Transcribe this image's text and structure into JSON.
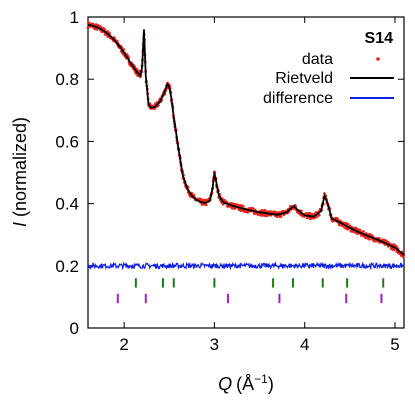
{
  "chart_data": {
    "type": "line",
    "title": "",
    "sample_label": "S14",
    "xlabel_symbol": "Q",
    "xlabel_unit_base": "(Å",
    "xlabel_unit_exp": "−1",
    "xlabel_unit_close": ")",
    "ylabel_symbol": "I",
    "ylabel_rest": " (normalized)",
    "xlim": [
      1.6,
      5.1
    ],
    "ylim": [
      0,
      1.0
    ],
    "x_ticks": [
      2,
      3,
      4,
      5
    ],
    "x_tick_labels": [
      "2",
      "3",
      "4",
      "5"
    ],
    "y_ticks": [
      0,
      0.2,
      0.4,
      0.6,
      0.8,
      1.0
    ],
    "y_tick_labels": [
      "0",
      "0.2",
      "0.4",
      "0.6",
      "0.8",
      "1"
    ],
    "grid": false,
    "legend_position": "top-right",
    "colors": {
      "data": "#e8261c",
      "rietveld": "#000000",
      "difference": "#1020e0",
      "ticks_phase1": "#1a7a1a",
      "ticks_phase2": "#a020c0"
    },
    "series": [
      {
        "name": "data",
        "style": "points",
        "points": [
          [
            1.6,
            0.975
          ],
          [
            1.65,
            0.972
          ],
          [
            1.7,
            0.967
          ],
          [
            1.75,
            0.96
          ],
          [
            1.8,
            0.95
          ],
          [
            1.85,
            0.938
          ],
          [
            1.9,
            0.923
          ],
          [
            1.95,
            0.905
          ],
          [
            2.0,
            0.885
          ],
          [
            2.05,
            0.862
          ],
          [
            2.1,
            0.84
          ],
          [
            2.15,
            0.82
          ],
          [
            2.18,
            0.812
          ],
          [
            2.2,
            0.84
          ],
          [
            2.22,
            0.96
          ],
          [
            2.24,
            0.81
          ],
          [
            2.27,
            0.72
          ],
          [
            2.3,
            0.708
          ],
          [
            2.35,
            0.712
          ],
          [
            2.4,
            0.73
          ],
          [
            2.45,
            0.76
          ],
          [
            2.48,
            0.785
          ],
          [
            2.5,
            0.775
          ],
          [
            2.52,
            0.745
          ],
          [
            2.55,
            0.68
          ],
          [
            2.6,
            0.58
          ],
          [
            2.65,
            0.49
          ],
          [
            2.7,
            0.448
          ],
          [
            2.75,
            0.425
          ],
          [
            2.8,
            0.412
          ],
          [
            2.85,
            0.405
          ],
          [
            2.9,
            0.402
          ],
          [
            2.95,
            0.41
          ],
          [
            2.98,
            0.45
          ],
          [
            3.0,
            0.5
          ],
          [
            3.02,
            0.47
          ],
          [
            3.05,
            0.425
          ],
          [
            3.1,
            0.404
          ],
          [
            3.2,
            0.393
          ],
          [
            3.3,
            0.385
          ],
          [
            3.4,
            0.378
          ],
          [
            3.5,
            0.372
          ],
          [
            3.6,
            0.368
          ],
          [
            3.7,
            0.364
          ],
          [
            3.8,
            0.372
          ],
          [
            3.85,
            0.385
          ],
          [
            3.88,
            0.392
          ],
          [
            3.92,
            0.38
          ],
          [
            4.0,
            0.362
          ],
          [
            4.1,
            0.358
          ],
          [
            4.18,
            0.375
          ],
          [
            4.22,
            0.425
          ],
          [
            4.25,
            0.405
          ],
          [
            4.3,
            0.352
          ],
          [
            4.4,
            0.338
          ],
          [
            4.5,
            0.322
          ],
          [
            4.6,
            0.308
          ],
          [
            4.7,
            0.296
          ],
          [
            4.8,
            0.285
          ],
          [
            4.9,
            0.272
          ],
          [
            5.0,
            0.258
          ],
          [
            5.1,
            0.235
          ]
        ]
      },
      {
        "name": "Rietveld",
        "style": "line",
        "points": [
          [
            1.6,
            0.975
          ],
          [
            1.65,
            0.972
          ],
          [
            1.7,
            0.967
          ],
          [
            1.75,
            0.96
          ],
          [
            1.8,
            0.95
          ],
          [
            1.85,
            0.938
          ],
          [
            1.9,
            0.923
          ],
          [
            1.95,
            0.905
          ],
          [
            2.0,
            0.885
          ],
          [
            2.05,
            0.862
          ],
          [
            2.1,
            0.84
          ],
          [
            2.15,
            0.82
          ],
          [
            2.18,
            0.812
          ],
          [
            2.2,
            0.84
          ],
          [
            2.22,
            0.96
          ],
          [
            2.24,
            0.81
          ],
          [
            2.27,
            0.72
          ],
          [
            2.3,
            0.708
          ],
          [
            2.35,
            0.712
          ],
          [
            2.4,
            0.73
          ],
          [
            2.45,
            0.76
          ],
          [
            2.48,
            0.785
          ],
          [
            2.5,
            0.775
          ],
          [
            2.52,
            0.745
          ],
          [
            2.55,
            0.68
          ],
          [
            2.6,
            0.58
          ],
          [
            2.65,
            0.49
          ],
          [
            2.7,
            0.448
          ],
          [
            2.75,
            0.425
          ],
          [
            2.8,
            0.412
          ],
          [
            2.85,
            0.405
          ],
          [
            2.9,
            0.402
          ],
          [
            2.95,
            0.41
          ],
          [
            2.98,
            0.45
          ],
          [
            3.0,
            0.5
          ],
          [
            3.02,
            0.47
          ],
          [
            3.05,
            0.425
          ],
          [
            3.1,
            0.404
          ],
          [
            3.2,
            0.393
          ],
          [
            3.3,
            0.385
          ],
          [
            3.4,
            0.378
          ],
          [
            3.5,
            0.372
          ],
          [
            3.6,
            0.368
          ],
          [
            3.7,
            0.364
          ],
          [
            3.8,
            0.372
          ],
          [
            3.85,
            0.385
          ],
          [
            3.88,
            0.392
          ],
          [
            3.92,
            0.38
          ],
          [
            4.0,
            0.362
          ],
          [
            4.1,
            0.358
          ],
          [
            4.18,
            0.375
          ],
          [
            4.22,
            0.425
          ],
          [
            4.25,
            0.405
          ],
          [
            4.3,
            0.352
          ],
          [
            4.4,
            0.338
          ],
          [
            4.5,
            0.322
          ],
          [
            4.6,
            0.308
          ],
          [
            4.7,
            0.296
          ],
          [
            4.8,
            0.285
          ],
          [
            4.9,
            0.272
          ],
          [
            5.0,
            0.258
          ],
          [
            5.1,
            0.235
          ]
        ]
      },
      {
        "name": "difference",
        "style": "line",
        "baseline": 0.2,
        "amplitude": 0.008
      }
    ],
    "tick_marks_phase1": {
      "y_range": [
        0.13,
        0.16
      ],
      "x": [
        2.13,
        2.43,
        2.55,
        3.0,
        3.65,
        3.87,
        4.2,
        4.47,
        4.87
      ]
    },
    "tick_marks_phase2": {
      "y_range": [
        0.08,
        0.11
      ],
      "x": [
        1.93,
        2.24,
        3.15,
        3.72,
        4.46,
        4.85
      ]
    }
  }
}
